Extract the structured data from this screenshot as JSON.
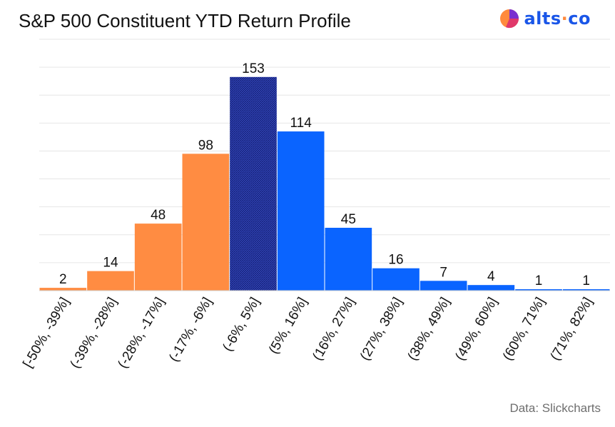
{
  "header": {
    "title": "S&P 500 Constituent YTD Return Profile",
    "logo_text_main": "alts",
    "logo_text_dot": "·",
    "logo_text_tail": "co",
    "logo_icon": "pie-logo-icon"
  },
  "footer": {
    "source": "Data: Slickcharts"
  },
  "colors": {
    "negative": "#ff8c42",
    "neutral": "#1f2d9c",
    "positive": "#0a64ff",
    "grid": "#e6e6e6",
    "brand": "#1a56e8"
  },
  "chart_data": {
    "type": "bar",
    "title": "S&P 500 Constituent YTD Return Profile",
    "xlabel": "",
    "ylabel": "",
    "categories": [
      "[-50%, -39%]",
      "(-39%, -28%]",
      "(-28%, -17%]",
      "(-17%, -6%]",
      "(-6%, 5%]",
      "(5%, 16%]",
      "(16%, 27%]",
      "(27%, 38%]",
      "(38%, 49%]",
      "(49%, 60%]",
      "(60%, 71%]",
      "(71%, 82%]"
    ],
    "values": [
      2,
      14,
      48,
      98,
      153,
      114,
      45,
      16,
      7,
      4,
      1,
      1
    ],
    "bar_groups": [
      "negative",
      "negative",
      "negative",
      "negative",
      "neutral",
      "positive",
      "positive",
      "positive",
      "positive",
      "positive",
      "positive",
      "positive"
    ],
    "ylim": [
      0,
      180
    ],
    "grid": true
  }
}
